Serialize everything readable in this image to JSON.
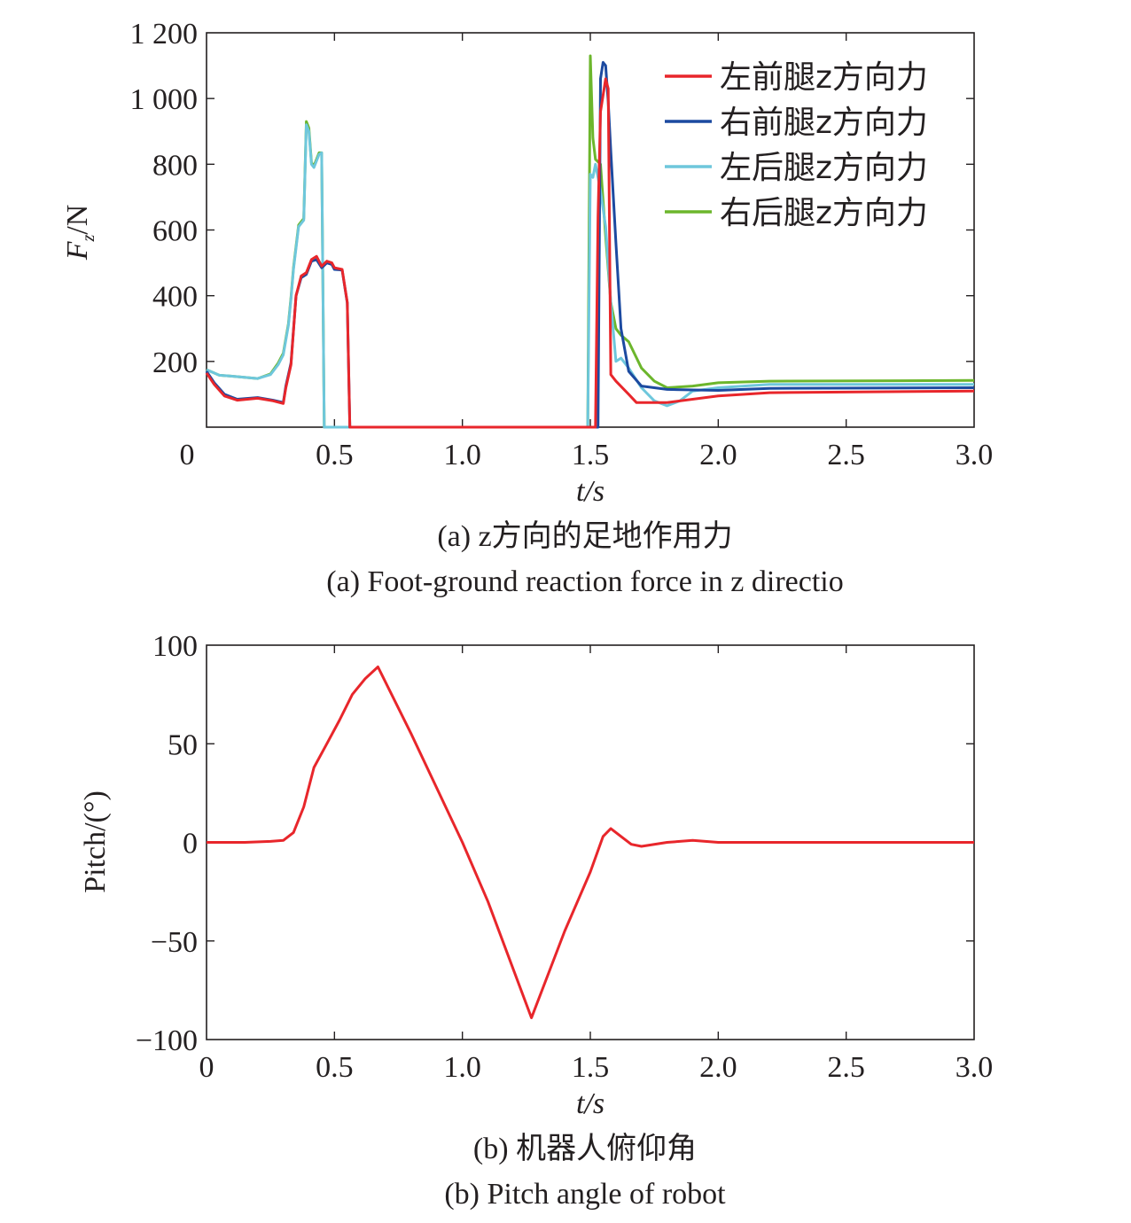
{
  "chart_data": [
    {
      "type": "line",
      "xlabel": "t/s",
      "ylabel_main": "F",
      "ylabel_sub": "z",
      "ylabel_unit": "/N",
      "xlim": [
        0,
        3.0
      ],
      "ylim": [
        0,
        1200
      ],
      "x_ticks": [
        0,
        0.5,
        1.0,
        1.5,
        2.0,
        2.5,
        3.0
      ],
      "x_tick_labels": [
        "0",
        "0.5",
        "1.0",
        "1.5",
        "2.0",
        "2.5",
        "3.0"
      ],
      "y_ticks": [
        200,
        400,
        600,
        800,
        1000,
        1200
      ],
      "y_tick_labels": [
        "200",
        "400",
        "600",
        "800",
        "1 000",
        "1 200"
      ],
      "grid": false,
      "legend_position": "top-right",
      "caption_cn": "(a) z方向的足地作用力",
      "caption_en": "(a) Foot-ground reaction force in z directio",
      "series": [
        {
          "name": "左前腿z方向力",
          "color": "#e8262b",
          "points": [
            [
              0,
              165
            ],
            [
              0.03,
              130
            ],
            [
              0.07,
              95
            ],
            [
              0.12,
              82
            ],
            [
              0.2,
              88
            ],
            [
              0.26,
              80
            ],
            [
              0.3,
              72
            ],
            [
              0.31,
              120
            ],
            [
              0.33,
              190
            ],
            [
              0.35,
              400
            ],
            [
              0.37,
              460
            ],
            [
              0.39,
              470
            ],
            [
              0.41,
              510
            ],
            [
              0.43,
              520
            ],
            [
              0.45,
              490
            ],
            [
              0.47,
              505
            ],
            [
              0.49,
              500
            ],
            [
              0.5,
              485
            ],
            [
              0.53,
              480
            ],
            [
              0.55,
              380
            ],
            [
              0.56,
              0
            ],
            [
              1.52,
              0
            ],
            [
              1.53,
              640
            ],
            [
              1.54,
              960
            ],
            [
              1.56,
              1060
            ],
            [
              1.57,
              1030
            ],
            [
              1.58,
              160
            ],
            [
              1.6,
              140
            ],
            [
              1.65,
              100
            ],
            [
              1.68,
              75
            ],
            [
              1.8,
              75
            ],
            [
              2.0,
              95
            ],
            [
              2.2,
              105
            ],
            [
              3.0,
              110
            ]
          ]
        },
        {
          "name": "右前腿z方向力",
          "color": "#1c4aa0",
          "points": [
            [
              0,
              170
            ],
            [
              0.03,
              135
            ],
            [
              0.07,
              100
            ],
            [
              0.12,
              85
            ],
            [
              0.2,
              90
            ],
            [
              0.26,
              82
            ],
            [
              0.3,
              75
            ],
            [
              0.31,
              125
            ],
            [
              0.33,
              195
            ],
            [
              0.35,
              400
            ],
            [
              0.37,
              455
            ],
            [
              0.39,
              465
            ],
            [
              0.41,
              505
            ],
            [
              0.43,
              510
            ],
            [
              0.45,
              485
            ],
            [
              0.47,
              500
            ],
            [
              0.49,
              495
            ],
            [
              0.5,
              480
            ],
            [
              0.53,
              478
            ],
            [
              0.55,
              378
            ],
            [
              0.56,
              0
            ],
            [
              1.53,
              0
            ],
            [
              1.54,
              1060
            ],
            [
              1.55,
              1110
            ],
            [
              1.56,
              1100
            ],
            [
              1.57,
              990
            ],
            [
              1.58,
              840
            ],
            [
              1.6,
              560
            ],
            [
              1.62,
              300
            ],
            [
              1.65,
              170
            ],
            [
              1.7,
              125
            ],
            [
              1.8,
              115
            ],
            [
              2.0,
              112
            ],
            [
              2.2,
              118
            ],
            [
              3.0,
              120
            ]
          ]
        },
        {
          "name": "左后腿z方向力",
          "color": "#6ec7dc",
          "points": [
            [
              0,
              175
            ],
            [
              0.05,
              158
            ],
            [
              0.1,
              155
            ],
            [
              0.2,
              148
            ],
            [
              0.25,
              160
            ],
            [
              0.28,
              190
            ],
            [
              0.3,
              220
            ],
            [
              0.32,
              310
            ],
            [
              0.33,
              390
            ],
            [
              0.34,
              480
            ],
            [
              0.36,
              610
            ],
            [
              0.38,
              630
            ],
            [
              0.39,
              920
            ],
            [
              0.4,
              900
            ],
            [
              0.41,
              800
            ],
            [
              0.42,
              790
            ],
            [
              0.44,
              830
            ],
            [
              0.45,
              835
            ],
            [
              0.46,
              0
            ],
            [
              1.49,
              0
            ],
            [
              1.5,
              770
            ],
            [
              1.51,
              760
            ],
            [
              1.52,
              800
            ],
            [
              1.54,
              720
            ],
            [
              1.56,
              610
            ],
            [
              1.58,
              380
            ],
            [
              1.6,
              200
            ],
            [
              1.62,
              210
            ],
            [
              1.65,
              180
            ],
            [
              1.7,
              120
            ],
            [
              1.75,
              80
            ],
            [
              1.8,
              65
            ],
            [
              1.85,
              80
            ],
            [
              1.9,
              110
            ],
            [
              2.0,
              120
            ],
            [
              2.2,
              130
            ],
            [
              3.0,
              130
            ]
          ]
        },
        {
          "name": "右后腿z方向力",
          "color": "#6cb62c",
          "points": [
            [
              0,
              175
            ],
            [
              0.05,
              158
            ],
            [
              0.1,
              155
            ],
            [
              0.2,
              148
            ],
            [
              0.25,
              162
            ],
            [
              0.28,
              195
            ],
            [
              0.3,
              225
            ],
            [
              0.32,
              315
            ],
            [
              0.33,
              395
            ],
            [
              0.34,
              485
            ],
            [
              0.36,
              615
            ],
            [
              0.38,
              635
            ],
            [
              0.39,
              930
            ],
            [
              0.4,
              910
            ],
            [
              0.41,
              805
            ],
            [
              0.42,
              795
            ],
            [
              0.44,
              835
            ],
            [
              0.45,
              835
            ],
            [
              0.46,
              0
            ],
            [
              1.49,
              0
            ],
            [
              1.5,
              1130
            ],
            [
              1.51,
              880
            ],
            [
              1.52,
              815
            ],
            [
              1.54,
              800
            ],
            [
              1.56,
              580
            ],
            [
              1.58,
              380
            ],
            [
              1.6,
              300
            ],
            [
              1.62,
              280
            ],
            [
              1.65,
              260
            ],
            [
              1.7,
              180
            ],
            [
              1.75,
              140
            ],
            [
              1.8,
              120
            ],
            [
              1.9,
              125
            ],
            [
              2.0,
              135
            ],
            [
              2.2,
              140
            ],
            [
              3.0,
              142
            ]
          ]
        }
      ]
    },
    {
      "type": "line",
      "xlabel": "t/s",
      "ylabel": "Pitch/(°)",
      "xlim": [
        0,
        3.0
      ],
      "ylim": [
        -100,
        100
      ],
      "x_ticks": [
        0,
        0.5,
        1.0,
        1.5,
        2.0,
        2.5,
        3.0
      ],
      "x_tick_labels": [
        "0",
        "0.5",
        "1.0",
        "1.5",
        "2.0",
        "2.5",
        "3.0"
      ],
      "y_ticks": [
        -100,
        -50,
        0,
        50,
        100
      ],
      "y_tick_labels": [
        "−100",
        "−50",
        "0",
        "50",
        "100"
      ],
      "grid": false,
      "caption_cn": "(b) 机器人俯仰角",
      "caption_en": "(b) Pitch angle of robot",
      "series": [
        {
          "color": "#e8262b",
          "points": [
            [
              0,
              0
            ],
            [
              0.15,
              0
            ],
            [
              0.25,
              0.5
            ],
            [
              0.3,
              1
            ],
            [
              0.34,
              5
            ],
            [
              0.38,
              18
            ],
            [
              0.42,
              38
            ],
            [
              0.47,
              50
            ],
            [
              0.52,
              62
            ],
            [
              0.57,
              75
            ],
            [
              0.62,
              83
            ],
            [
              0.67,
              89
            ],
            [
              0.8,
              55
            ],
            [
              1.0,
              0
            ],
            [
              1.1,
              -30
            ],
            [
              1.27,
              -89
            ],
            [
              1.4,
              -45
            ],
            [
              1.5,
              -15
            ],
            [
              1.55,
              3
            ],
            [
              1.58,
              7
            ],
            [
              1.62,
              3
            ],
            [
              1.66,
              -1
            ],
            [
              1.7,
              -2
            ],
            [
              1.8,
              0
            ],
            [
              1.9,
              1
            ],
            [
              2.0,
              0
            ],
            [
              2.2,
              0
            ],
            [
              3.0,
              0
            ]
          ]
        }
      ]
    }
  ]
}
